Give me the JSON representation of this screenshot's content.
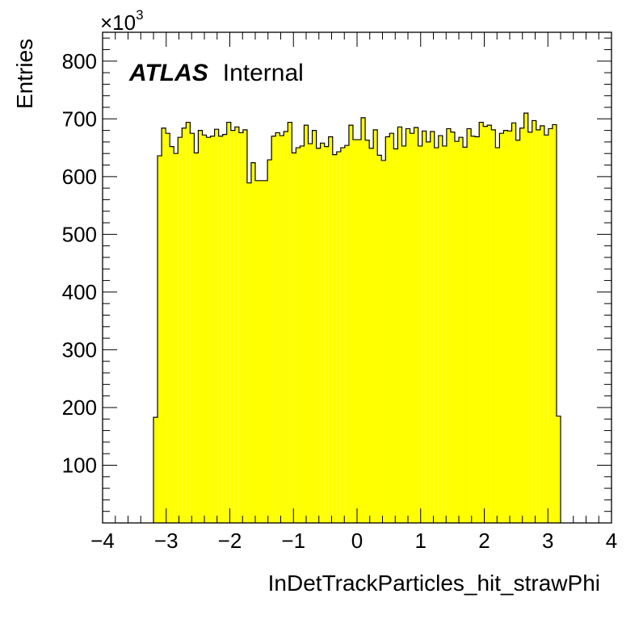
{
  "chart_data": {
    "type": "bar",
    "histogram": true,
    "xlabel": "InDetTrackParticles_hit_strawPhi",
    "ylabel": "Entries",
    "y_multiplier": {
      "base": "×10",
      "exponent": "3"
    },
    "label": {
      "experiment": "ATLAS",
      "status": "Internal"
    },
    "fill_color": "#ffff00",
    "line_color": "#000000",
    "xlim": [
      -4,
      4
    ],
    "ylim": [
      0,
      850
    ],
    "xticks": [
      -4,
      -3,
      -2,
      -1,
      0,
      1,
      2,
      3,
      4
    ],
    "xtick_labels": [
      "−4",
      "−3",
      "−2",
      "−1",
      "0",
      "1",
      "2",
      "3",
      "4"
    ],
    "yticks": [
      100,
      200,
      300,
      400,
      500,
      600,
      700,
      800
    ],
    "ytick_labels": [
      "100",
      "200",
      "300",
      "400",
      "500",
      "600",
      "700",
      "800"
    ],
    "bin_edges": [
      -3.2,
      3.2
    ],
    "bin_width": 0.064,
    "values": [
      183,
      636,
      684,
      675,
      652,
      640,
      668,
      684,
      694,
      675,
      641,
      680,
      672,
      668,
      670,
      682,
      670,
      673,
      694,
      680,
      686,
      676,
      681,
      589,
      624,
      593,
      593,
      593,
      629,
      670,
      676,
      671,
      678,
      694,
      641,
      650,
      653,
      689,
      657,
      680,
      649,
      658,
      652,
      669,
      638,
      643,
      650,
      654,
      689,
      664,
      664,
      702,
      663,
      649,
      681,
      637,
      628,
      669,
      675,
      648,
      686,
      653,
      683,
      675,
      685,
      653,
      679,
      660,
      678,
      650,
      671,
      653,
      683,
      677,
      661,
      668,
      651,
      683,
      670,
      669,
      694,
      687,
      689,
      681,
      650,
      675,
      680,
      679,
      693,
      663,
      684,
      710,
      677,
      697,
      681,
      688,
      672,
      683,
      690,
      185
    ]
  }
}
